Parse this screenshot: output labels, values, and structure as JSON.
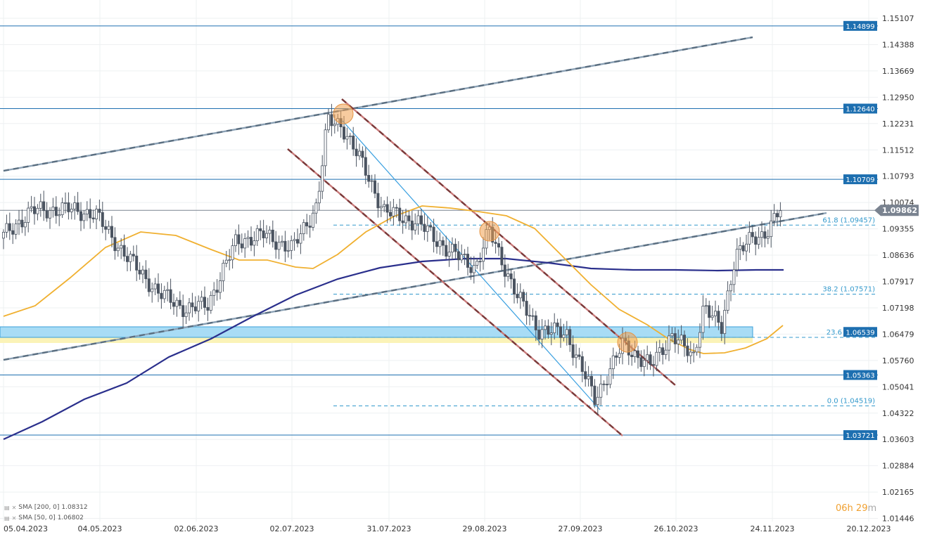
{
  "chart_data": {
    "type": "candlestick",
    "instrument_last_price": "1.09862",
    "y_axis": {
      "ylim": [
        1.0124,
        1.1545
      ],
      "ticks": [
        "1.15107",
        "1.14388",
        "1.13669",
        "1.12950",
        "1.12231",
        "1.11512",
        "1.10793",
        "1.10074",
        "1.09355",
        "1.08636",
        "1.07917",
        "1.07198",
        "1.06479",
        "1.05760",
        "1.05041",
        "1.04322",
        "1.03603",
        "1.02884",
        "1.02165",
        "1.01446"
      ]
    },
    "x_axis": {
      "ticks": [
        "05.04.2023",
        "04.05.2023",
        "02.06.2023",
        "02.07.2023",
        "31.07.2023",
        "29.08.2023",
        "27.09.2023",
        "26.10.2023",
        "24.11.2023",
        "20.12.2023"
      ]
    },
    "horizontal_levels": [
      {
        "label": "1.14899",
        "value": 1.14899
      },
      {
        "label": "1.12640",
        "value": 1.1264
      },
      {
        "label": "1.10709",
        "value": 1.10709
      },
      {
        "label": "1.05363",
        "value": 1.05363
      },
      {
        "label": "1.03721",
        "value": 1.03721
      }
    ],
    "fibonacci": [
      {
        "label": "61.8 (1.09457)",
        "value": 1.09457
      },
      {
        "label": "38.2 (1.07571)",
        "value": 1.07571
      },
      {
        "label": "23.6",
        "value": 1.0639
      },
      {
        "label": "0.0 (1.04519)",
        "value": 1.04519
      }
    ],
    "zone_label": "1.06539",
    "indicators": [
      {
        "name": "SMA [200, 0]",
        "value": "1.08312",
        "color": "#2a2f8c"
      },
      {
        "name": "SMA [50, 0]",
        "value": "1.06802",
        "color": "#f0b030"
      }
    ],
    "countdown": {
      "hours": "06h",
      "minutes": "29",
      "unit": "m"
    },
    "colors": {
      "level_line": "#1d6fb0",
      "fib_line": "#3399cc",
      "sma200": "#2a2f8c",
      "sma50": "#f0b030",
      "candle": "#4b5461",
      "zone": "#a8dcf5",
      "highlight": "#f0a060"
    }
  }
}
